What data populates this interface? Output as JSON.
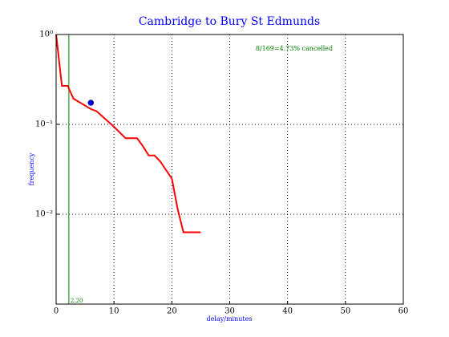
{
  "chart_data": {
    "type": "line",
    "title": "Cambridge to Bury St Edmunds",
    "x_label": "delay/minutes",
    "y_label": "frequency",
    "annotation": "8/169=4.73% cancelled",
    "log_y": true,
    "grid": true,
    "xlim": [
      0,
      60
    ],
    "xticks": [
      0,
      10,
      20,
      30,
      40,
      50,
      60
    ],
    "ylim": [
      0.001,
      1
    ],
    "yticks": [
      {
        "value": 1,
        "label": "10⁰"
      },
      {
        "value": 0.1,
        "label": "10⁻¹"
      },
      {
        "value": 0.01,
        "label": "10⁻²"
      }
    ],
    "series": [
      {
        "color": "#ff0000",
        "x": [
          0,
          1,
          2,
          3,
          6,
          7,
          10,
          12,
          14,
          15,
          16,
          17,
          18,
          19,
          20,
          21,
          22,
          25
        ],
        "values": [
          1.0,
          0.268,
          0.268,
          0.193,
          0.148,
          0.14,
          0.094,
          0.07,
          0.07,
          0.057,
          0.045,
          0.045,
          0.0386,
          0.031,
          0.025,
          0.0115,
          0.0063,
          0.0063
        ]
      }
    ],
    "points": {
      "color": "#0000ff",
      "x": [
        6
      ],
      "values": [
        0.174
      ]
    },
    "vline": {
      "value": 2.2,
      "label": "2.20",
      "color": "#008000"
    }
  }
}
